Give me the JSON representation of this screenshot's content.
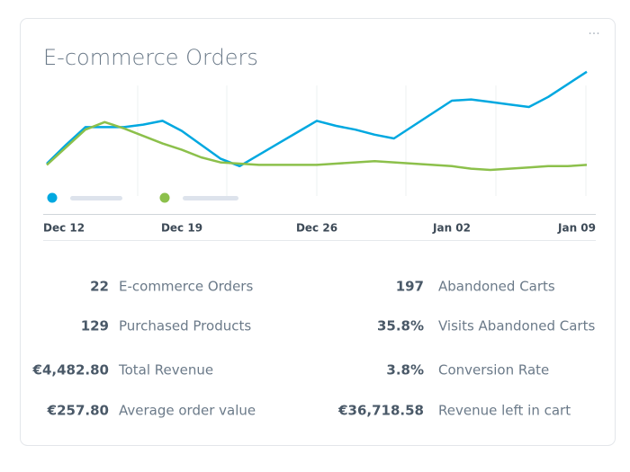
{
  "widget": {
    "title": "E-commerce Orders"
  },
  "chart_data": {
    "type": "line",
    "categories": [
      "Dec 12",
      null,
      null,
      null,
      null,
      null,
      null,
      "Dec 19",
      null,
      null,
      null,
      null,
      null,
      null,
      "Dec 26",
      null,
      null,
      null,
      null,
      null,
      null,
      "Jan 02",
      null,
      null,
      null,
      null,
      null,
      null,
      "Jan 09"
    ],
    "series": [
      {
        "color": "#00a8e0",
        "values": [
          20,
          35,
          49,
          49,
          49,
          51,
          54,
          46,
          35,
          24,
          18,
          27,
          36,
          45,
          54,
          50,
          47,
          43,
          40,
          50,
          60,
          70,
          71,
          69,
          67,
          65,
          73,
          83,
          93
        ]
      },
      {
        "color": "#8cc04b",
        "values": [
          19,
          33,
          47,
          53,
          48,
          42,
          36,
          31,
          25,
          21,
          20,
          19,
          19,
          19,
          19,
          20,
          21,
          22,
          21,
          20,
          19,
          18,
          16,
          15,
          16,
          17,
          18,
          18,
          19
        ]
      }
    ],
    "ylim": [
      0,
      100
    ]
  },
  "metrics": {
    "left": [
      {
        "value": "22",
        "label": "E-commerce Orders"
      },
      {
        "value": "129",
        "label": "Purchased Products"
      },
      {
        "value": "€4,482.80",
        "label": "Total Revenue"
      },
      {
        "value": "€257.80",
        "label": "Average order value"
      }
    ],
    "right": [
      {
        "value": "197",
        "label": "Abandoned Carts"
      },
      {
        "value": "35.8%",
        "label": "Visits Abandoned Carts"
      },
      {
        "value": "3.8%",
        "label": "Conversion Rate"
      },
      {
        "value": "€36,718.58",
        "label": "Revenue left in cart"
      }
    ]
  }
}
